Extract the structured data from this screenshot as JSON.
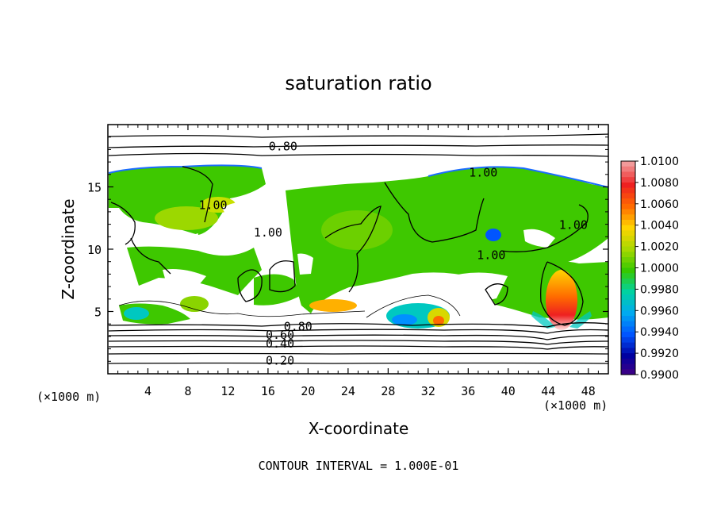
{
  "chart_data": {
    "type": "heatmap",
    "title": "saturation ratio",
    "xlabel": "X-coordinate",
    "ylabel": "Z-coordinate",
    "x_unit_left": "(×1000 m)",
    "x_unit_right": "(×1000 m)",
    "xlim": [
      0,
      50
    ],
    "ylim": [
      0,
      20
    ],
    "x_ticks": [
      4,
      8,
      12,
      16,
      20,
      24,
      28,
      32,
      36,
      40,
      44,
      48
    ],
    "y_ticks": [
      5,
      10,
      15
    ],
    "footer": "CONTOUR INTERVAL = 1.000E-01",
    "colorbar": {
      "range": [
        0.99,
        1.01
      ],
      "labels": [
        "1.0100",
        "1.0080",
        "1.0060",
        "1.0040",
        "1.0020",
        "1.0000",
        "0.9980",
        "0.9960",
        "0.9940",
        "0.9920",
        "0.9900"
      ],
      "colors": [
        "#f29a9a",
        "#ee2020",
        "#ff6a00",
        "#ffd400",
        "#a8d800",
        "#36c800",
        "#00d2a0",
        "#00aaf0",
        "#0055ff",
        "#0000a0",
        "#4a0080"
      ]
    },
    "contour_levels": [
      {
        "label": "0.80",
        "x": 17.5,
        "z": 18.3
      },
      {
        "label": "1.00",
        "x": 37.5,
        "z": 16.2
      },
      {
        "label": "1.00",
        "x": 10.5,
        "z": 13.6
      },
      {
        "label": "1.00",
        "x": 16.0,
        "z": 11.4
      },
      {
        "label": "1.00",
        "x": 38.3,
        "z": 9.6
      },
      {
        "label": "1.00",
        "x": 46.5,
        "z": 12.0
      },
      {
        "label": "0.80",
        "x": 19.0,
        "z": 3.85
      },
      {
        "label": "0.60",
        "x": 17.2,
        "z": 3.2
      },
      {
        "label": "0.40",
        "x": 17.2,
        "z": 2.5
      },
      {
        "label": "0.20",
        "x": 17.2,
        "z": 1.1
      }
    ]
  }
}
